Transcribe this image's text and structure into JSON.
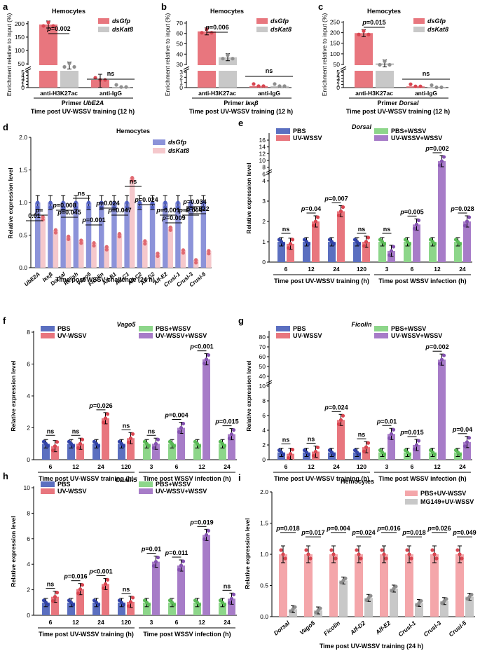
{
  "colors": {
    "red": "#E8767E",
    "redLight": "#F4A6AA",
    "gray": "#C8C8C8",
    "blue": "#5B6FC0",
    "green": "#8DD68A",
    "purple": "#A77CC8",
    "blueLight": "#8C93D9",
    "pinkLight": "#F5C8CC"
  },
  "chart_data": [
    {
      "id": "a",
      "type": "bar",
      "panel_letter": "a",
      "title": "Hemocytes",
      "ylabel": "Enrichment relative to input (%)",
      "categories": [
        "anti-H3K27ac",
        "anti-IgG"
      ],
      "series": [
        {
          "name": "dsGfp",
          "values": [
            197,
            2.5
          ]
        },
        {
          "name": "dsKat8",
          "values": [
            44,
            0.2
          ]
        }
      ],
      "yticks_top": [
        "50",
        "100",
        "150",
        "200"
      ],
      "yticks_bottom": [
        "0",
        "1",
        "2",
        "3",
        "4",
        "5"
      ],
      "annotations": [
        "p=0.002",
        "ns"
      ],
      "primer_prefix": "Primer ",
      "primer_gene": "UbE2A",
      "xlabel": "Time post UV-WSSV training (12 h)"
    },
    {
      "id": "b",
      "type": "bar",
      "panel_letter": "b",
      "title": "Hemocytes",
      "ylabel": "Enrichment relative to input (%)",
      "categories": [
        "anti-H3K27ac",
        "anti-IgG"
      ],
      "series": [
        {
          "name": "dsGfp",
          "values": [
            62,
            0.3
          ]
        },
        {
          "name": "dsKat8",
          "values": [
            37,
            0.3
          ]
        }
      ],
      "yticks_top": [
        "30",
        "40",
        "50",
        "60",
        "70"
      ],
      "yticks_bottom": [
        "0",
        "1",
        "2",
        "3"
      ],
      "annotations": [
        "p=0.006",
        "ns"
      ],
      "primer_prefix": "Primer ",
      "primer_gene": "Iκκβ",
      "xlabel": "Time post UV-WSSV training (12 h)"
    },
    {
      "id": "c",
      "type": "bar",
      "panel_letter": "c",
      "title": "Hemocytes",
      "ylabel": "Enrichment relative to input (%)",
      "categories": [
        "anti-H3K27ac",
        "anti-IgG"
      ],
      "series": [
        {
          "name": "dsGfp",
          "values": [
            198,
            0.4
          ]
        },
        {
          "name": "dsKat8",
          "values": [
            55,
            0.1
          ]
        }
      ],
      "yticks_top": [
        "50",
        "100",
        "150",
        "200",
        "250"
      ],
      "yticks_bottom": [
        "0",
        "1",
        "2",
        "3",
        "4",
        "5"
      ],
      "annotations": [
        "p=0.015",
        "ns"
      ],
      "primer_prefix": "Primer ",
      "primer_gene": "Dorsal",
      "xlabel": "Time post UV-WSSV training (12 h)"
    },
    {
      "id": "d",
      "type": "bar",
      "panel_letter": "d",
      "title": "Hemocytes",
      "ylabel": "Relative expression level",
      "ylim": [
        0,
        2
      ],
      "yticks": [
        "0.0",
        "0.5",
        "1.0",
        "1.5",
        "2.0"
      ],
      "categories": [
        "UbE2A",
        "Iκκβ",
        "Dorsal",
        "Relish",
        "Vago5",
        "Ficolin",
        "Alf-B1",
        "Alf-C1",
        "Alf-C2",
        "Alf-D2",
        "Alf-E2",
        "Crusl-1",
        "Crusl-3",
        "Crusl-5"
      ],
      "series": [
        {
          "name": "dsGfp",
          "values": [
            1,
            1,
            1,
            1,
            1,
            1,
            1,
            1,
            1,
            1,
            1,
            1,
            1,
            1
          ]
        },
        {
          "name": "dsKat8",
          "values": [
            0.78,
            0.58,
            0.48,
            0.42,
            0.38,
            0.32,
            0.52,
            1.38,
            0.41,
            0.22,
            0.62,
            0.27,
            0.12,
            0.26
          ]
        }
      ],
      "annotations": [
        "0.01",
        "p=0.008",
        "p=",
        "p=0.045",
        "ns",
        "p=0.001",
        "p=0.024",
        "p=0.047",
        "ns",
        "p=0.024",
        "p=0.001",
        "p=0.009",
        "p=0.004",
        "p=0.034",
        "p=0.022"
      ],
      "xlabel": "Time post WSSV challenge (24 h)"
    },
    {
      "id": "e",
      "type": "bar",
      "panel_letter": "e",
      "title": "Dorsal",
      "ylabel": "Relative expression level",
      "yticks": [
        "0",
        "1",
        "2",
        "3",
        "4",
        "6",
        "8",
        "10",
        "12",
        "14",
        "16"
      ],
      "groups": [
        "6",
        "12",
        "24",
        "120",
        "3",
        "6",
        "12",
        "24"
      ],
      "series": [
        {
          "name": "PBS",
          "values": [
            1,
            1,
            1,
            1
          ]
        },
        {
          "name": "UV-WSSV",
          "values": [
            0.9,
            2,
            2.5,
            1
          ]
        },
        {
          "name": "PBS+WSSV",
          "values": [
            1,
            1,
            1,
            1
          ]
        },
        {
          "name": "UV-WSSV+WSSV",
          "values": [
            0.55,
            1.85,
            9.8,
            2
          ]
        }
      ],
      "annotations": [
        "ns",
        "p=0.04",
        "p=0.007",
        "ns",
        "ns",
        "p=0.005",
        "p=0.002",
        "p=0.028"
      ],
      "xlabels": [
        "Time post UV-WSSV training (h)",
        "Time post WSSV infection (h)"
      ]
    },
    {
      "id": "f",
      "type": "bar",
      "panel_letter": "f",
      "title": "Vago5",
      "ylabel": "Relative expression level",
      "ylim": [
        0,
        8
      ],
      "yticks": [
        "0",
        "2",
        "4",
        "6",
        "8"
      ],
      "groups": [
        "6",
        "12",
        "24",
        "120",
        "3",
        "6",
        "12",
        "24"
      ],
      "series": [
        {
          "name": "PBS",
          "values": [
            1,
            1,
            1,
            1
          ]
        },
        {
          "name": "UV-WSSV",
          "values": [
            0.85,
            1,
            2.6,
            1.35
          ]
        },
        {
          "name": "PBS+WSSV",
          "values": [
            1,
            1,
            1,
            1
          ]
        },
        {
          "name": "UV-WSSV+WSSV",
          "values": [
            1,
            2,
            6.3,
            1.6
          ]
        }
      ],
      "annotations": [
        "ns",
        "ns",
        "p=0.026",
        "ns",
        "ns",
        "p=0.004",
        "p<0.001",
        "p=0.015"
      ],
      "xlabels": [
        "Time post UV-WSSV training (h)",
        "Time post WSSV infection (h)"
      ]
    },
    {
      "id": "g",
      "type": "bar",
      "panel_letter": "g",
      "title": "Ficolin",
      "ylabel": "Relative expression level",
      "yticks": [
        "0",
        "2",
        "4",
        "6",
        "8",
        "10",
        "40",
        "50",
        "60",
        "70",
        "80"
      ],
      "groups": [
        "6",
        "12",
        "24",
        "120",
        "3",
        "6",
        "12",
        "24"
      ],
      "series": [
        {
          "name": "PBS",
          "values": [
            1,
            1,
            1,
            1
          ]
        },
        {
          "name": "UV-WSSV",
          "values": [
            0.8,
            1.1,
            5.4,
            1.7
          ]
        },
        {
          "name": "PBS+WSSV",
          "values": [
            1,
            1,
            1,
            1
          ]
        },
        {
          "name": "UV-WSSV+WSSV",
          "values": [
            3.5,
            2,
            57,
            2.4
          ]
        }
      ],
      "annotations": [
        "ns",
        "ns",
        "p=0.024",
        "ns",
        "p=0.01",
        "p=0.015",
        "p=0.002",
        "p=0.04"
      ],
      "xlabels": [
        "Time post UV-WSSV training (h)",
        "Time post WSSV infection (h)"
      ]
    },
    {
      "id": "h",
      "type": "bar",
      "panel_letter": "h",
      "title": "Crusl-5",
      "ylabel": "Relative expression level",
      "ylim": [
        0,
        10
      ],
      "yticks": [
        "0",
        "2",
        "4",
        "6",
        "8",
        "10"
      ],
      "groups": [
        "6",
        "12",
        "24",
        "120",
        "3",
        "6",
        "12",
        "24"
      ],
      "series": [
        {
          "name": "PBS",
          "values": [
            1,
            1,
            1,
            1
          ]
        },
        {
          "name": "UV-WSSV",
          "values": [
            1.45,
            2.05,
            2.45,
            1.05
          ]
        },
        {
          "name": "PBS+WSSV",
          "values": [
            1,
            1,
            1,
            1
          ]
        },
        {
          "name": "UV-WSSV+WSSV",
          "values": [
            4.2,
            3.9,
            6.3,
            1.3
          ]
        }
      ],
      "annotations": [
        "ns",
        "p=0.016",
        "p<0.001",
        "ns",
        "p=0.01",
        "p=0.011",
        "p=0.019",
        "ns"
      ],
      "xlabels": [
        "Time post UV-WSSV training (h)",
        "Time post WSSV infection (h)"
      ]
    },
    {
      "id": "i",
      "type": "bar",
      "panel_letter": "i",
      "title": "Hemocytes",
      "ylabel": "Relative expression level",
      "ylim": [
        0,
        2
      ],
      "yticks": [
        "0.0",
        "0.5",
        "1.0",
        "1.5",
        "2.0"
      ],
      "categories": [
        "Dorsal",
        "Vago5",
        "Ficolin",
        "Alf-D2",
        "Alf-E2",
        "Crusl-1",
        "Crusl-3",
        "Crusl-5"
      ],
      "series": [
        {
          "name": "PBS+UV-WSSV",
          "values": [
            1,
            1,
            1,
            1,
            1,
            1,
            1,
            1
          ]
        },
        {
          "name": "MG149+UV-WSSV",
          "values": [
            0.12,
            0.1,
            0.58,
            0.3,
            0.45,
            0.22,
            0.25,
            0.32
          ]
        }
      ],
      "annotations": [
        "p=0.018",
        "p=0.017",
        "p=0.004",
        "p=0.024",
        "p=0.016",
        "p=0.018",
        "p=0.026",
        "p=0.049"
      ],
      "xlabel": "Time post UV-WSSV training (24 h)"
    }
  ]
}
